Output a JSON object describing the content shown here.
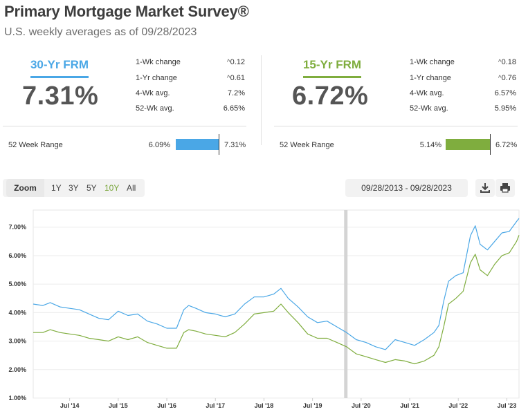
{
  "header": {
    "title": "Primary Mortgage Market Survey®",
    "subtitle": "U.S. weekly averages as of 09/28/2023"
  },
  "colors": {
    "frm30": "#4aa7e6",
    "frm15": "#7fad3e"
  },
  "frm30": {
    "label": "30-Yr FRM",
    "rate": "7.31%",
    "stats": [
      {
        "label": "1-Wk change",
        "value": "0.12",
        "caret": true
      },
      {
        "label": "1-Yr change",
        "value": "0.61",
        "caret": true
      },
      {
        "label": "4-Wk avg.",
        "value": "7.2%",
        "caret": false
      },
      {
        "label": "52-Wk avg.",
        "value": "6.65%",
        "caret": false
      }
    ],
    "range": {
      "label": "52 Week Range",
      "low": "6.09%",
      "high": "7.31%"
    }
  },
  "frm15": {
    "label": "15-Yr FRM",
    "rate": "6.72%",
    "stats": [
      {
        "label": "1-Wk change",
        "value": "0.18",
        "caret": true
      },
      {
        "label": "1-Yr change",
        "value": "0.76",
        "caret": true
      },
      {
        "label": "4-Wk avg.",
        "value": "6.57%",
        "caret": false
      },
      {
        "label": "52-Wk avg.",
        "value": "5.95%",
        "caret": false
      }
    ],
    "range": {
      "label": "52 Week Range",
      "low": "5.14%",
      "high": "6.72%"
    }
  },
  "controls": {
    "zoom_label": "Zoom",
    "zoom_options": [
      "1Y",
      "3Y",
      "5Y",
      "10Y",
      "All"
    ],
    "zoom_selected": "10Y",
    "date_range": "09/28/2013 - 09/28/2023",
    "download_icon": "download-icon",
    "print_icon": "print-icon"
  },
  "chart_data": {
    "type": "line",
    "y_ticks": [
      "1.00%",
      "2.00%",
      "3.00%",
      "4.00%",
      "5.00%",
      "6.00%",
      "7.00%"
    ],
    "ylim": [
      1.0,
      7.6
    ],
    "x_ticks": [
      {
        "label": "Jul '14",
        "t": 2014.5
      },
      {
        "label": "Jul '15",
        "t": 2015.5
      },
      {
        "label": "Jul '16",
        "t": 2016.5
      },
      {
        "label": "Jul '17",
        "t": 2017.5
      },
      {
        "label": "Jul '18",
        "t": 2018.5
      },
      {
        "label": "Jul '19",
        "t": 2019.5
      },
      {
        "label": "Jul '20",
        "t": 2020.5
      },
      {
        "label": "Jul '21",
        "t": 2021.5
      },
      {
        "label": "Jul '22",
        "t": 2022.5
      },
      {
        "label": "Jul '23",
        "t": 2023.5
      }
    ],
    "xlim": [
      2013.75,
      2023.75
    ],
    "grid": "horizontal",
    "highlight_band": [
      2020.15,
      2020.22
    ],
    "series": [
      {
        "color": "#4aa7e6",
        "t": [
          2013.75,
          2013.95,
          2014.1,
          2014.3,
          2014.5,
          2014.7,
          2014.9,
          2015.1,
          2015.3,
          2015.5,
          2015.7,
          2015.9,
          2016.1,
          2016.3,
          2016.5,
          2016.7,
          2016.85,
          2016.95,
          2017.1,
          2017.3,
          2017.5,
          2017.7,
          2017.9,
          2018.1,
          2018.3,
          2018.5,
          2018.7,
          2018.85,
          2019.0,
          2019.2,
          2019.4,
          2019.6,
          2019.8,
          2020.0,
          2020.2,
          2020.4,
          2020.6,
          2020.8,
          2021.0,
          2021.2,
          2021.4,
          2021.6,
          2021.8,
          2022.0,
          2022.1,
          2022.2,
          2022.3,
          2022.45,
          2022.6,
          2022.75,
          2022.85,
          2022.95,
          2023.1,
          2023.25,
          2023.4,
          2023.55,
          2023.7,
          2023.75
        ],
        "values": [
          4.3,
          4.25,
          4.35,
          4.2,
          4.15,
          4.1,
          3.95,
          3.8,
          3.75,
          4.05,
          3.9,
          3.95,
          3.7,
          3.6,
          3.45,
          3.45,
          4.1,
          4.25,
          4.15,
          4.0,
          3.95,
          3.85,
          3.95,
          4.3,
          4.55,
          4.55,
          4.65,
          4.85,
          4.5,
          4.2,
          3.85,
          3.65,
          3.7,
          3.5,
          3.3,
          3.05,
          2.95,
          2.8,
          2.7,
          3.05,
          2.95,
          2.85,
          3.05,
          3.3,
          3.55,
          4.4,
          5.1,
          5.3,
          5.4,
          6.7,
          7.05,
          6.4,
          6.2,
          6.5,
          6.8,
          6.85,
          7.2,
          7.31
        ]
      },
      {
        "color": "#7fad3e",
        "t": [
          2013.75,
          2013.95,
          2014.1,
          2014.3,
          2014.5,
          2014.7,
          2014.9,
          2015.1,
          2015.3,
          2015.5,
          2015.7,
          2015.9,
          2016.1,
          2016.3,
          2016.5,
          2016.7,
          2016.85,
          2016.95,
          2017.1,
          2017.3,
          2017.5,
          2017.7,
          2017.9,
          2018.1,
          2018.3,
          2018.5,
          2018.7,
          2018.85,
          2019.0,
          2019.2,
          2019.4,
          2019.6,
          2019.8,
          2020.0,
          2020.2,
          2020.4,
          2020.6,
          2020.8,
          2021.0,
          2021.2,
          2021.4,
          2021.6,
          2021.8,
          2022.0,
          2022.1,
          2022.2,
          2022.3,
          2022.45,
          2022.6,
          2022.75,
          2022.85,
          2022.95,
          2023.1,
          2023.25,
          2023.4,
          2023.55,
          2023.7,
          2023.75
        ],
        "values": [
          3.3,
          3.3,
          3.4,
          3.3,
          3.25,
          3.2,
          3.1,
          3.05,
          3.0,
          3.15,
          3.05,
          3.15,
          2.95,
          2.85,
          2.75,
          2.75,
          3.3,
          3.4,
          3.35,
          3.25,
          3.2,
          3.15,
          3.3,
          3.6,
          3.95,
          4.0,
          4.05,
          4.3,
          4.0,
          3.65,
          3.25,
          3.1,
          3.1,
          2.95,
          2.8,
          2.55,
          2.45,
          2.35,
          2.25,
          2.35,
          2.3,
          2.2,
          2.3,
          2.5,
          2.8,
          3.5,
          4.3,
          4.5,
          4.75,
          5.75,
          6.05,
          5.5,
          5.3,
          5.7,
          6.0,
          6.1,
          6.5,
          6.72
        ]
      }
    ]
  }
}
